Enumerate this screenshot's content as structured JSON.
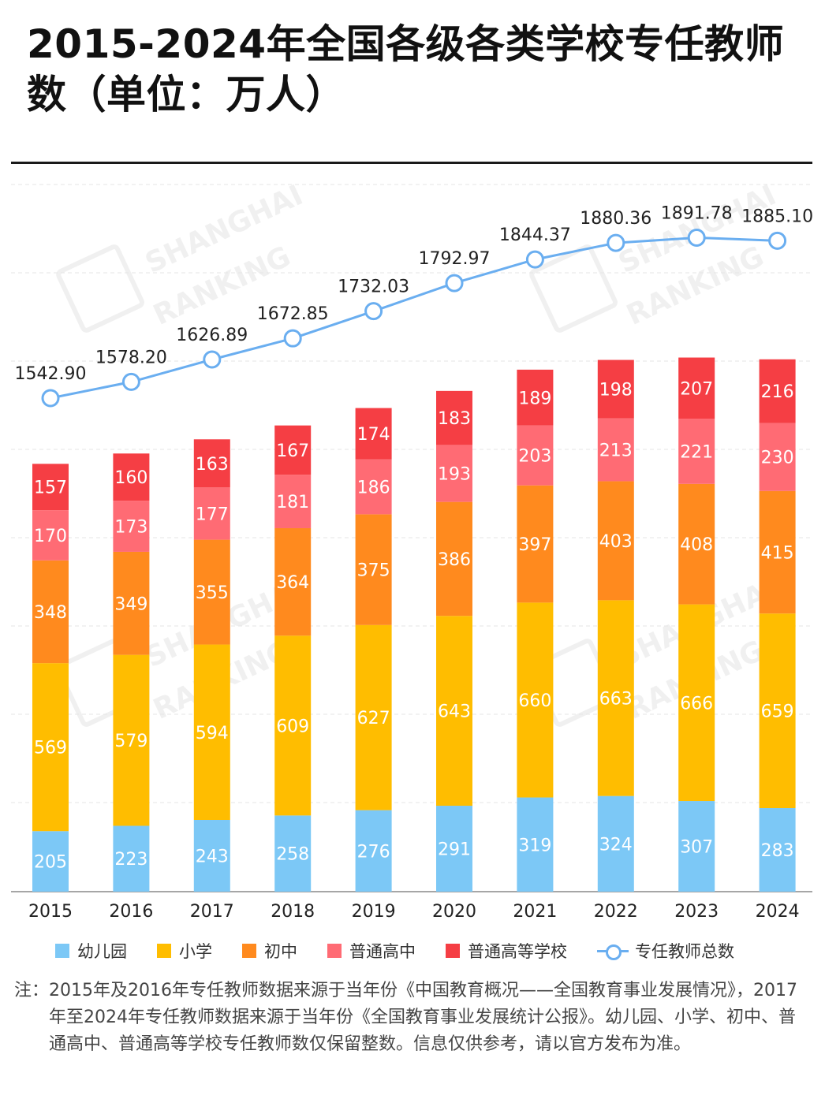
{
  "title": "2015-2024年全国各级各类学校专任教师数（单位：万人）",
  "watermark_text": [
    "SHANGHAI",
    "RANKING"
  ],
  "colors": {
    "kindergarten": "#7cc8f6",
    "primary": "#ffbd00",
    "junior": "#ff8a1e",
    "senior": "#ff6b74",
    "higher": "#f53e44",
    "total_line": "#6aaef0"
  },
  "chart_data": {
    "type": "bar",
    "stacked": true,
    "categories": [
      "2015",
      "2016",
      "2017",
      "2018",
      "2019",
      "2020",
      "2021",
      "2022",
      "2023",
      "2024"
    ],
    "series": [
      {
        "name": "幼儿园",
        "color": "#7cc8f6",
        "values": [
          205,
          223,
          243,
          258,
          276,
          291,
          319,
          324,
          307,
          283
        ]
      },
      {
        "name": "小学",
        "color": "#ffbd00",
        "values": [
          569,
          579,
          594,
          609,
          627,
          643,
          660,
          663,
          666,
          659
        ]
      },
      {
        "name": "初中",
        "color": "#ff8a1e",
        "values": [
          348,
          349,
          355,
          364,
          375,
          386,
          397,
          403,
          408,
          415
        ]
      },
      {
        "name": "普通高中",
        "color": "#ff6b74",
        "values": [
          170,
          173,
          177,
          181,
          186,
          193,
          203,
          213,
          221,
          230
        ]
      },
      {
        "name": "普通高等学校",
        "color": "#f53e44",
        "values": [
          157,
          160,
          163,
          167,
          174,
          183,
          189,
          198,
          207,
          216
        ]
      }
    ],
    "line": {
      "name": "专任教师总数",
      "type": "line",
      "values": [
        1542.9,
        1578.2,
        1626.89,
        1672.85,
        1732.03,
        1792.97,
        1844.37,
        1880.36,
        1891.78,
        1885.1
      ],
      "labels": [
        "1542.90",
        "1578.20",
        "1626.89",
        "1672.85",
        "1732.03",
        "1792.97",
        "1844.37",
        "1880.36",
        "1891.78",
        "1885.10"
      ]
    },
    "grid": true,
    "legend_position": "bottom"
  },
  "legend": [
    {
      "label": "幼儿园",
      "color": "#7cc8f6",
      "kind": "swatch"
    },
    {
      "label": "小学",
      "color": "#ffbd00",
      "kind": "swatch"
    },
    {
      "label": "初中",
      "color": "#ff8a1e",
      "kind": "swatch"
    },
    {
      "label": "普通高中",
      "color": "#ff6b74",
      "kind": "swatch"
    },
    {
      "label": "普通高等学校",
      "color": "#f53e44",
      "kind": "swatch"
    },
    {
      "label": "专任教师总数",
      "color": "#6aaef0",
      "kind": "line"
    }
  ],
  "note": {
    "prefix": "注：",
    "text": "2015年及2016年专任教师数据来源于当年份《中国教育概况——全国教育事业发展情况》，2017年至2024年专任教师数据来源于当年份《全国教育事业发展统计公报》。幼儿园、小学、初中、普通高中、普通高等学校专任教师数仅保留整数。信息仅供参考，请以官方发布为准。"
  }
}
